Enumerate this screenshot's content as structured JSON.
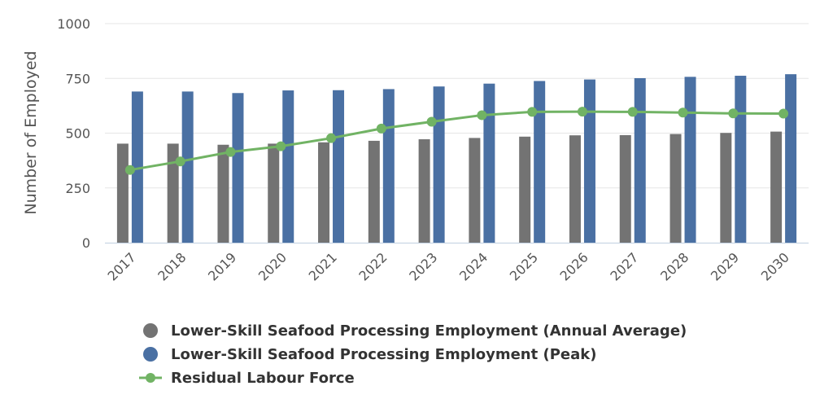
{
  "chart_data": {
    "type": "bar",
    "title": "",
    "xlabel": "",
    "ylabel": "Number of Employed",
    "ylim": [
      0,
      1000
    ],
    "yticks": [
      0,
      250,
      500,
      750,
      1000
    ],
    "grid": true,
    "legend_position": "bottom",
    "categories": [
      "2017",
      "2018",
      "2019",
      "2020",
      "2021",
      "2022",
      "2023",
      "2024",
      "2025",
      "2026",
      "2027",
      "2028",
      "2029",
      "2030"
    ],
    "series": [
      {
        "name": "Lower-Skill Seafood Processing Employment (Annual Average)",
        "type": "bar",
        "color": "#737373",
        "values": [
          452,
          452,
          447,
          452,
          458,
          465,
          472,
          478,
          484,
          490,
          491,
          496,
          501,
          507
        ]
      },
      {
        "name": "Lower-Skill Seafood Processing Employment (Peak)",
        "type": "bar",
        "color": "#4a70a3",
        "values": [
          690,
          690,
          683,
          695,
          696,
          701,
          713,
          726,
          738,
          745,
          751,
          757,
          762,
          769
        ]
      },
      {
        "name": "Residual Labour Force",
        "type": "line",
        "color": "#71b364",
        "values": [
          332,
          371,
          414,
          440,
          477,
          521,
          552,
          582,
          597,
          598,
          597,
          594,
          590,
          589
        ]
      }
    ]
  }
}
